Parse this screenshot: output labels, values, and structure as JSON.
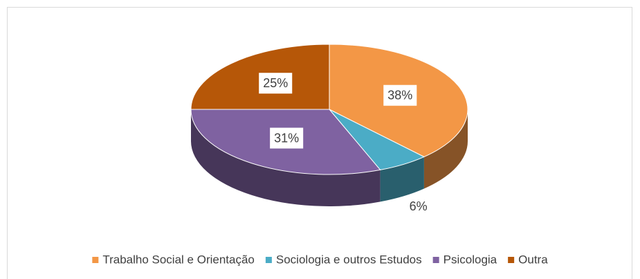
{
  "chart_data": {
    "type": "pie3d",
    "categories": [
      "Trabalho Social e Orientação",
      "Sociologia e outros Estudos",
      "Psicologia",
      "Outra"
    ],
    "values": [
      38,
      6,
      31,
      25
    ],
    "value_labels": [
      "38%",
      "6%",
      "31%",
      "25%"
    ],
    "colors": [
      "#f39746",
      "#4bacc6",
      "#7f62a1",
      "#b65708"
    ],
    "legend": "bottom"
  }
}
